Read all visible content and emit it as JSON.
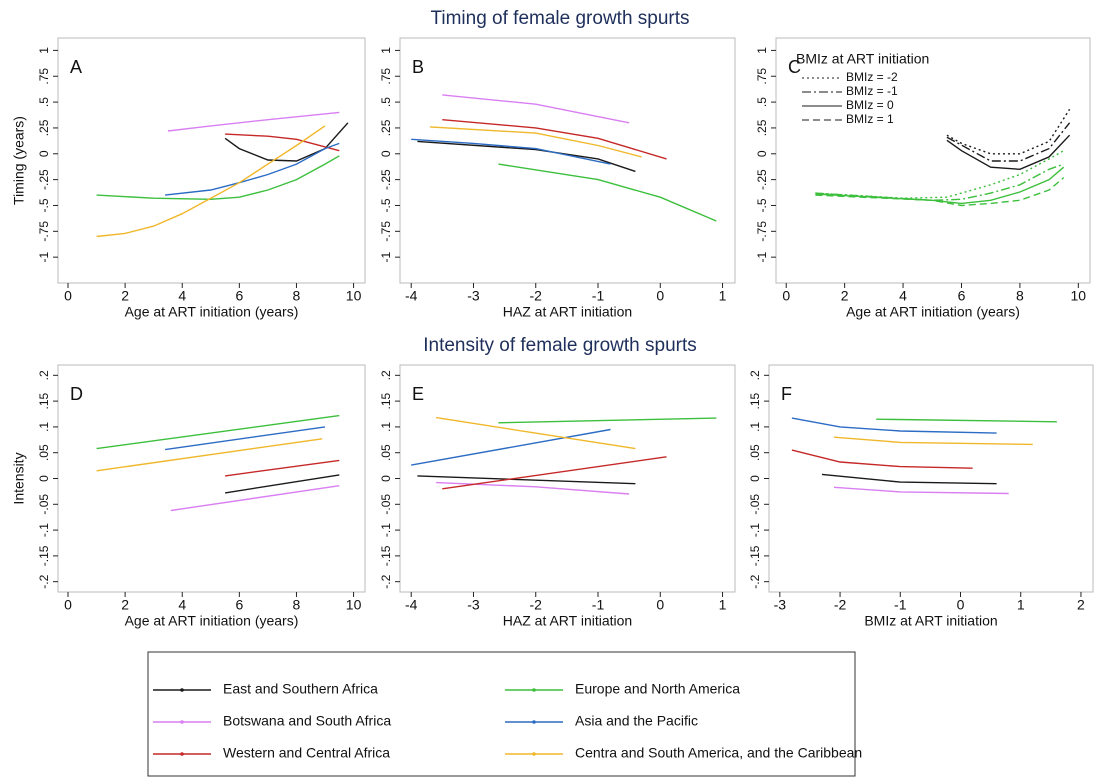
{
  "chart_data": [
    {
      "type": "line",
      "title": "Timing of female growth spurts",
      "panel_label": "A",
      "xlabel": "Age at ART initiation (years)",
      "ylabel": "Timing (years)",
      "xlim": [
        -0.35,
        10.4
      ],
      "xticks": [
        0,
        2,
        4,
        6,
        8,
        10
      ],
      "ylim": [
        -1.25,
        1.12
      ],
      "yticks": [
        1,
        {
          "value": 0.75,
          "label": ".75"
        },
        {
          "value": 0.5,
          "label": ".5"
        },
        {
          "value": 0.25,
          "label": ".25"
        },
        0,
        {
          "value": -0.25,
          "label": "-.25"
        },
        {
          "value": -0.5,
          "label": "-.5"
        },
        {
          "value": -0.75,
          "label": "-.75"
        },
        -1
      ],
      "series": [
        {
          "name": "East and Southern Africa",
          "color": "#1a1a1a",
          "x": [
            5.5,
            6,
            7,
            8,
            9,
            9.8
          ],
          "values": [
            0.15,
            0.05,
            -0.06,
            -0.07,
            0.05,
            0.3
          ]
        },
        {
          "name": "Botswana and South Africa",
          "color": "#d97ff2",
          "x": [
            3.5,
            5,
            7,
            9.5
          ],
          "values": [
            0.22,
            0.27,
            0.33,
            0.4
          ]
        },
        {
          "name": "Western and Central Africa",
          "color": "#c62828",
          "x": [
            5.5,
            7,
            8,
            9.5
          ],
          "values": [
            0.19,
            0.17,
            0.14,
            0.03
          ]
        },
        {
          "name": "Europe and North America",
          "color": "#3cbf3c",
          "x": [
            1,
            3,
            5,
            6,
            7,
            8,
            9,
            9.5
          ],
          "values": [
            -0.4,
            -0.43,
            -0.44,
            -0.42,
            -0.35,
            -0.25,
            -0.1,
            -0.02
          ]
        },
        {
          "name": "Asia and the Pacific",
          "color": "#2c6cc4",
          "x": [
            3.4,
            5,
            6,
            7,
            8,
            9,
            9.5
          ],
          "values": [
            -0.4,
            -0.35,
            -0.28,
            -0.2,
            -0.1,
            0.05,
            0.1
          ]
        },
        {
          "name": "Centra and South America, and the Caribbean",
          "color": "#f0b72a",
          "x": [
            1,
            2,
            3,
            4,
            5,
            6,
            7,
            8,
            9
          ],
          "values": [
            -0.8,
            -0.77,
            -0.7,
            -0.58,
            -0.43,
            -0.28,
            -0.1,
            0.08,
            0.27
          ]
        }
      ]
    },
    {
      "type": "line",
      "panel_label": "B",
      "xlabel": "HAZ at ART initiation",
      "xlim": [
        -4.18,
        1.2
      ],
      "xticks": [
        -4,
        -3,
        -2,
        -1,
        0,
        1
      ],
      "ylim": [
        -1.25,
        1.12
      ],
      "yticks": [
        1,
        {
          "value": 0.75,
          "label": ".75"
        },
        {
          "value": 0.5,
          "label": ".5"
        },
        {
          "value": 0.25,
          "label": ".25"
        },
        0,
        {
          "value": -0.25,
          "label": "-.25"
        },
        {
          "value": -0.5,
          "label": "-.5"
        },
        {
          "value": -0.75,
          "label": "-.75"
        },
        -1
      ],
      "series": [
        {
          "color": "#1a1a1a",
          "x": [
            -3.9,
            -2,
            -1,
            -0.4
          ],
          "values": [
            0.12,
            0.04,
            -0.05,
            -0.17
          ]
        },
        {
          "color": "#d97ff2",
          "x": [
            -3.5,
            -2,
            -0.5
          ],
          "values": [
            0.57,
            0.48,
            0.3
          ]
        },
        {
          "color": "#c62828",
          "x": [
            -3.5,
            -2,
            -1,
            0.1
          ],
          "values": [
            0.33,
            0.25,
            0.15,
            -0.05
          ]
        },
        {
          "color": "#3cbf3c",
          "x": [
            -2.6,
            -1,
            0,
            0.9
          ],
          "values": [
            -0.1,
            -0.25,
            -0.42,
            -0.65
          ]
        },
        {
          "color": "#2c6cc4",
          "x": [
            -4,
            -3,
            -2,
            -0.8
          ],
          "values": [
            0.14,
            0.1,
            0.05,
            -0.1
          ]
        },
        {
          "color": "#f0b72a",
          "x": [
            -3.7,
            -2,
            -1,
            -0.3
          ],
          "values": [
            0.26,
            0.2,
            0.08,
            -0.03
          ]
        }
      ]
    },
    {
      "type": "line",
      "panel_label": "C",
      "xlabel": "Age at ART initiation (years)",
      "legend_title": "BMIz at ART initiation",
      "legend": [
        {
          "name": "BMIz = -2",
          "dash": "dotted"
        },
        {
          "name": "BMIz = -1",
          "dash": "dashdot"
        },
        {
          "name": "BMIz = 0",
          "dash": "solid"
        },
        {
          "name": "BMIz = 1",
          "dash": "dashed"
        }
      ],
      "xlim": [
        -0.35,
        10.4
      ],
      "xticks": [
        0,
        2,
        4,
        6,
        8,
        10
      ],
      "ylim": [
        -1.25,
        1.12
      ],
      "yticks": [
        1,
        {
          "value": 0.75,
          "label": ".75"
        },
        {
          "value": 0.5,
          "label": ".5"
        },
        {
          "value": 0.25,
          "label": ".25"
        },
        0,
        {
          "value": -0.25,
          "label": "-.25"
        },
        {
          "value": -0.5,
          "label": "-.5"
        },
        {
          "value": -0.75,
          "label": "-.75"
        },
        -1
      ],
      "series": [
        {
          "color": "#1a1a1a",
          "dash": "dotted",
          "x": [
            5.5,
            6,
            7,
            8,
            9,
            9.7
          ],
          "values": [
            0.18,
            0.1,
            0,
            0,
            0.12,
            0.43
          ]
        },
        {
          "color": "#1a1a1a",
          "dash": "dashdot",
          "x": [
            5.5,
            7,
            8,
            9,
            9.7
          ],
          "values": [
            0.16,
            -0.07,
            -0.07,
            0.05,
            0.3
          ]
        },
        {
          "color": "#1a1a1a",
          "dash": "solid",
          "x": [
            5.5,
            6,
            7,
            8,
            9,
            9.7
          ],
          "values": [
            0.13,
            0.03,
            -0.13,
            -0.15,
            -0.03,
            0.18
          ]
        },
        {
          "color": "#3cbf3c",
          "dash": "dotted",
          "x": [
            1,
            4,
            5.5,
            7,
            8,
            9,
            9.5
          ],
          "values": [
            -0.38,
            -0.43,
            -0.42,
            -0.3,
            -0.2,
            -0.05,
            0.03
          ]
        },
        {
          "color": "#3cbf3c",
          "dash": "dashdot",
          "x": [
            1,
            5,
            6,
            7,
            8,
            9,
            9.5
          ],
          "values": [
            -0.38,
            -0.45,
            -0.44,
            -0.38,
            -0.3,
            -0.15,
            -0.1
          ]
        },
        {
          "color": "#3cbf3c",
          "dash": "solid",
          "x": [
            1,
            5,
            6,
            7,
            8,
            9,
            9.5
          ],
          "values": [
            -0.39,
            -0.45,
            -0.48,
            -0.45,
            -0.37,
            -0.25,
            -0.13
          ]
        },
        {
          "color": "#3cbf3c",
          "dash": "dashed",
          "x": [
            1,
            5,
            6,
            7,
            8,
            9,
            9.5
          ],
          "values": [
            -0.4,
            -0.45,
            -0.5,
            -0.48,
            -0.45,
            -0.35,
            -0.23
          ]
        }
      ]
    },
    {
      "type": "line",
      "title": "Intensity of female growth spurts",
      "panel_label": "D",
      "xlabel": "Age at ART initiation (years)",
      "ylabel": "Intensity",
      "xlim": [
        -0.35,
        10.4
      ],
      "xticks": [
        0,
        2,
        4,
        6,
        8,
        10
      ],
      "ylim": [
        -0.22,
        0.22
      ],
      "yticks": [
        {
          "value": 0.2,
          "label": ".2"
        },
        {
          "value": 0.15,
          "label": ".15"
        },
        {
          "value": 0.1,
          "label": ".1"
        },
        {
          "value": 0.05,
          "label": ".05"
        },
        0,
        {
          "value": -0.05,
          "label": "-.05"
        },
        {
          "value": -0.1,
          "label": "-.1"
        },
        {
          "value": -0.15,
          "label": "-.15"
        },
        {
          "value": -0.2,
          "label": "-.2"
        }
      ],
      "series": [
        {
          "color": "#1a1a1a",
          "x": [
            5.5,
            9.5
          ],
          "values": [
            -0.028,
            0.007
          ]
        },
        {
          "color": "#d97ff2",
          "x": [
            3.6,
            9.5
          ],
          "values": [
            -0.062,
            -0.014
          ]
        },
        {
          "color": "#c62828",
          "x": [
            5.5,
            9.5
          ],
          "values": [
            0.005,
            0.035
          ]
        },
        {
          "color": "#3cbf3c",
          "x": [
            1,
            9.5
          ],
          "values": [
            0.058,
            0.122
          ]
        },
        {
          "color": "#2c6cc4",
          "x": [
            3.4,
            9
          ],
          "values": [
            0.056,
            0.1
          ]
        },
        {
          "color": "#f0b72a",
          "x": [
            1,
            8.9
          ],
          "values": [
            0.015,
            0.077
          ]
        }
      ]
    },
    {
      "type": "line",
      "panel_label": "E",
      "xlabel": "HAZ at ART initiation",
      "xlim": [
        -4.18,
        1.2
      ],
      "xticks": [
        -4,
        -3,
        -2,
        -1,
        0,
        1
      ],
      "ylim": [
        -0.22,
        0.22
      ],
      "yticks": [
        {
          "value": 0.2,
          "label": ".2"
        },
        {
          "value": 0.15,
          "label": ".15"
        },
        {
          "value": 0.1,
          "label": ".1"
        },
        {
          "value": 0.05,
          "label": ".05"
        },
        0,
        {
          "value": -0.05,
          "label": "-.05"
        },
        {
          "value": -0.1,
          "label": "-.1"
        },
        {
          "value": -0.15,
          "label": "-.15"
        },
        {
          "value": -0.2,
          "label": "-.2"
        }
      ],
      "series": [
        {
          "color": "#1a1a1a",
          "x": [
            -3.9,
            -0.4
          ],
          "values": [
            0.005,
            -0.01
          ]
        },
        {
          "color": "#d97ff2",
          "x": [
            -3.6,
            -2,
            -0.5
          ],
          "values": [
            -0.008,
            -0.016,
            -0.03
          ]
        },
        {
          "color": "#c62828",
          "x": [
            -3.5,
            0.1
          ],
          "values": [
            -0.02,
            0.042
          ]
        },
        {
          "color": "#3cbf3c",
          "x": [
            -2.6,
            0.9
          ],
          "values": [
            0.108,
            0.117
          ]
        },
        {
          "color": "#2c6cc4",
          "x": [
            -4,
            -0.8
          ],
          "values": [
            0.026,
            0.095
          ]
        },
        {
          "color": "#f0b72a",
          "x": [
            -3.6,
            -0.4
          ],
          "values": [
            0.118,
            0.058
          ]
        }
      ]
    },
    {
      "type": "line",
      "panel_label": "F",
      "xlabel": "BMIz at ART initiation",
      "xlim": [
        -3.18,
        2.2
      ],
      "xticks": [
        -3,
        -2,
        -1,
        0,
        1,
        2
      ],
      "ylim": [
        -0.22,
        0.22
      ],
      "yticks": [
        {
          "value": 0.2,
          "label": ".2"
        },
        {
          "value": 0.15,
          "label": ".15"
        },
        {
          "value": 0.1,
          "label": ".1"
        },
        {
          "value": 0.05,
          "label": ".05"
        },
        0,
        {
          "value": -0.05,
          "label": "-.05"
        },
        {
          "value": -0.1,
          "label": "-.1"
        },
        {
          "value": -0.15,
          "label": "-.15"
        },
        {
          "value": -0.2,
          "label": "-.2"
        }
      ],
      "series": [
        {
          "color": "#1a1a1a",
          "x": [
            -2.3,
            -1,
            0.6
          ],
          "values": [
            0.008,
            -0.007,
            -0.01
          ]
        },
        {
          "color": "#d97ff2",
          "x": [
            -2.1,
            -1,
            0.8
          ],
          "values": [
            -0.017,
            -0.026,
            -0.029
          ]
        },
        {
          "color": "#c62828",
          "x": [
            -2.8,
            -2,
            -1,
            0.2
          ],
          "values": [
            0.055,
            0.032,
            0.023,
            0.02
          ]
        },
        {
          "color": "#3cbf3c",
          "x": [
            -1.4,
            1.6
          ],
          "values": [
            0.115,
            0.11
          ]
        },
        {
          "color": "#2c6cc4",
          "x": [
            -2.8,
            -2,
            -1,
            0.6
          ],
          "values": [
            0.117,
            0.1,
            0.092,
            0.088
          ]
        },
        {
          "color": "#f0b72a",
          "x": [
            -2.1,
            -1,
            1.2
          ],
          "values": [
            0.08,
            0.07,
            0.066
          ]
        }
      ]
    }
  ]
}
